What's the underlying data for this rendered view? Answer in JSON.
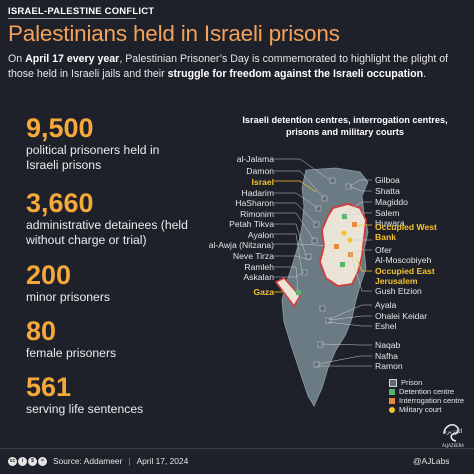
{
  "kicker": "ISRAEL-PALESTINE CONFLICT",
  "title": "Palestinians held in Israeli prisons",
  "intro": {
    "p1": "On ",
    "date_bold": "April 17 every year",
    "p2": ", Palestinian Prisoner’s Day is commemorated to highlight the plight of those held in Israeli jails and their ",
    "struggle_bold": "struggle for freedom against the Israeli occupation",
    "p3": "."
  },
  "chart_data": [
    {
      "type": "table",
      "rows": [
        {
          "value": "9,500",
          "label": "political prisoners held in Israeli prisons"
        },
        {
          "value": "3,660",
          "label": "administrative detainees (held without charge or trial)"
        },
        {
          "value": "200",
          "label": "minor prisoners"
        },
        {
          "value": "80",
          "label": "female prisoners"
        },
        {
          "value": "561",
          "label": "serving life sentences"
        }
      ]
    }
  ],
  "map": {
    "heading_1": "Israeli detention centres, interrogation centres,",
    "heading_2": "prisons and military courts",
    "left_labels": [
      "al-Jalama",
      "Damon",
      "Israel",
      "Hadarim",
      "HaSharon",
      "Rimonim",
      "Petah Tikva",
      "Ayalon",
      "al-Awja (Nitzana)",
      "Neve Tirza",
      "Ramleh",
      "Askalan",
      "Gaza"
    ],
    "right_labels": [
      "Gilboa",
      "Shatta",
      "Magiddo",
      "Salem",
      "Huwara",
      "Occupied West Bank",
      "Ofer",
      "Al-Moscobiyeh",
      "Occupied East Jerusalem",
      "Gush Etzion",
      "Ayala",
      "Ohalei Keidar",
      "Eshel",
      "Naqab",
      "Nafha",
      "Ramon"
    ],
    "highlight_color": "#f6c22e",
    "land_color": "#6b7b84",
    "border_color": "#d63b3b",
    "territory_fill": "#e9e4d6"
  },
  "legend": {
    "items": [
      {
        "label": "Prison",
        "color": "#5f6b73"
      },
      {
        "label": "Detention centre",
        "color": "#57b36b"
      },
      {
        "label": "Interrogation centre",
        "color": "#e88a3a"
      },
      {
        "label": "Military court",
        "color": "#f6c22e"
      }
    ]
  },
  "footer": {
    "source": "Source: Addameer",
    "date": "April 17, 2024",
    "brand": "@AJLabs",
    "logo_text": "الجزيرة",
    "logo_sub": "ALJAZEERA"
  },
  "colors": {
    "accent": "#f6a93b",
    "background": "#1e2129"
  }
}
